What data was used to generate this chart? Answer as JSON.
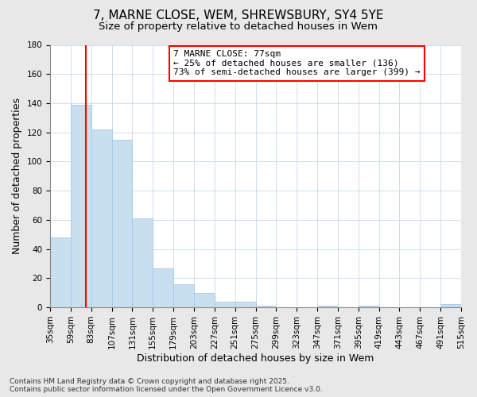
{
  "title": "7, MARNE CLOSE, WEM, SHREWSBURY, SY4 5YE",
  "subtitle": "Size of property relative to detached houses in Wem",
  "xlabel": "Distribution of detached houses by size in Wem",
  "ylabel": "Number of detached properties",
  "bar_color": "#c8dff0",
  "bar_edgecolor": "#a8c8e8",
  "vline_x": 77,
  "vline_color": "red",
  "annotation_title": "7 MARNE CLOSE: 77sqm",
  "annotation_line1": "← 25% of detached houses are smaller (136)",
  "annotation_line2": "73% of semi-detached houses are larger (399) →",
  "annotation_box_color": "white",
  "annotation_box_edgecolor": "red",
  "bins": [
    35,
    59,
    83,
    107,
    131,
    155,
    179,
    203,
    227,
    251,
    275,
    299,
    323,
    347,
    371,
    395,
    419,
    443,
    467,
    491,
    515
  ],
  "counts": [
    48,
    139,
    122,
    115,
    61,
    27,
    16,
    10,
    4,
    4,
    1,
    0,
    0,
    1,
    0,
    1,
    0,
    0,
    0,
    2
  ],
  "ylim": [
    0,
    180
  ],
  "yticks": [
    0,
    20,
    40,
    60,
    80,
    100,
    120,
    140,
    160,
    180
  ],
  "background_color": "#e8e8e8",
  "plot_background_color": "#ffffff",
  "footer_line1": "Contains HM Land Registry data © Crown copyright and database right 2025.",
  "footer_line2": "Contains public sector information licensed under the Open Government Licence v3.0.",
  "title_fontsize": 11,
  "subtitle_fontsize": 9.5,
  "axis_label_fontsize": 9,
  "tick_fontsize": 7.5,
  "footer_fontsize": 6.5
}
